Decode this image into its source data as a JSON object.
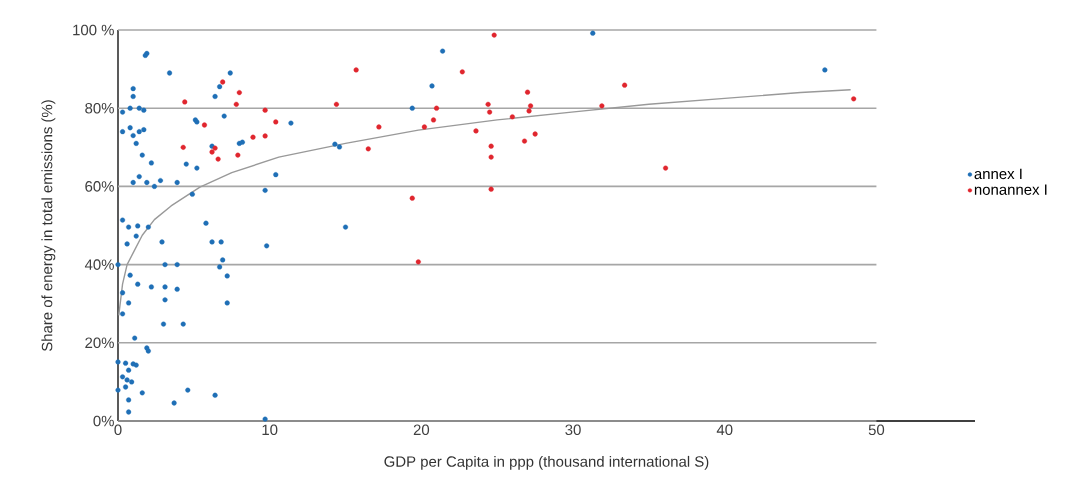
{
  "chart_data": {
    "type": "scatter",
    "xlabel": "GDP per Capita in ppp (thousand international S)",
    "ylabel": "Share of energy in total emissions (%)",
    "xlim": [
      0,
      56.5
    ],
    "ylim": [
      0,
      100
    ],
    "xticks": [
      0,
      10,
      20,
      30,
      40,
      50
    ],
    "yticks": [
      {
        "value": 0,
        "label": "0%"
      },
      {
        "value": 20,
        "label": "20%"
      },
      {
        "value": 40,
        "label": "40%"
      },
      {
        "value": 60,
        "label": "60%"
      },
      {
        "value": 80,
        "label": "80%"
      },
      {
        "value": 100,
        "label": "100 %"
      }
    ],
    "grid": "y",
    "legend": "right",
    "series": [
      {
        "name": "annex I",
        "color": "#1f6fb6",
        "marker": "circle",
        "x": [
          1.9,
          1.8,
          3.4,
          1,
          1,
          0.3,
          0.8,
          1.4,
          1.7,
          0.3,
          0.8,
          1,
          1.4,
          1.7,
          1.2,
          1.6,
          2.2,
          1.9,
          1.4,
          1,
          2.4,
          2.8,
          3.9,
          4.5,
          5.2,
          5.1,
          5.2,
          6.2,
          7,
          7.4,
          6.7,
          6.4,
          8,
          8.2,
          9.7,
          10.4,
          4.9,
          5.8,
          0.3,
          0.7,
          1.3,
          2,
          0.6,
          1.2,
          2.9,
          6.2,
          6.8,
          9.8,
          0,
          3.1,
          3.9,
          6.9,
          6.7,
          7.2,
          0.8,
          1.3,
          2.2,
          3.1,
          3.9,
          0.3,
          3.1,
          0.7,
          7.2,
          0.3,
          3,
          4.3,
          1.1,
          1.9,
          2,
          0,
          0.5,
          1,
          0.7,
          1.2,
          0.3,
          0.6,
          0.9,
          0,
          0.5,
          1.6,
          4.6,
          6.4,
          0.7,
          3.7,
          0.7,
          9.7,
          21.4,
          20.7,
          19.4,
          11.4,
          14.3,
          14.6,
          15,
          31.3,
          46.6
        ],
        "values": [
          94,
          93.5,
          89,
          85,
          83,
          79,
          80,
          80,
          79.5,
          74,
          75,
          73,
          74,
          74.5,
          71,
          68,
          66,
          61,
          62.5,
          61,
          60,
          61.5,
          61,
          65.7,
          64.7,
          77,
          76.5,
          70.3,
          78,
          89,
          85.5,
          83,
          71,
          71.3,
          59,
          63,
          58,
          50.6,
          51.4,
          49.6,
          49.9,
          49.6,
          45.3,
          47.3,
          45.8,
          45.8,
          45.8,
          44.8,
          40,
          40,
          40,
          41.2,
          39.4,
          37.1,
          37.3,
          35,
          34.3,
          34.3,
          33.7,
          32.8,
          31,
          30.2,
          30.2,
          27.4,
          24.8,
          24.8,
          21.2,
          18.7,
          17.9,
          15.1,
          14.8,
          14.6,
          13,
          14.3,
          11.3,
          10.5,
          10,
          7.9,
          8.7,
          7.2,
          7.9,
          6.6,
          5.4,
          4.6,
          2.3,
          0.5,
          94.6,
          85.7,
          80,
          76.2,
          70.8,
          70.1,
          49.6,
          99.2,
          89.8
        ]
      },
      {
        "name": "nonannex I",
        "color": "#e0262e",
        "marker": "circle",
        "x": [
          4.4,
          6.9,
          8,
          7.8,
          9.7,
          10.4,
          5.7,
          4.3,
          6.4,
          6.2,
          6.6,
          7.9,
          8.9,
          9.7,
          24.8,
          15.7,
          22.7,
          27,
          14.4,
          24.4,
          21,
          24.5,
          27.2,
          27.1,
          26,
          20.8,
          20.2,
          17.2,
          23.6,
          27.5,
          26.8,
          24.6,
          24.6,
          16.5,
          24.6,
          19.4,
          19.8,
          33.4,
          31.9,
          36.1,
          48.5
        ],
        "values": [
          81.6,
          86.7,
          84,
          81,
          79.5,
          76.5,
          75.7,
          70,
          69.8,
          68.8,
          67,
          68,
          72.6,
          72.9,
          98.7,
          89.8,
          89.3,
          84.1,
          81,
          81,
          80,
          79,
          80.6,
          79.3,
          77.8,
          77,
          75.2,
          75.2,
          74.2,
          73.4,
          71.6,
          70.3,
          67.5,
          69.6,
          59.3,
          57,
          40.7,
          85.9,
          80.6,
          64.7,
          82.4
        ]
      },
      {
        "type": "line",
        "color": "#999999",
        "x": [
          0.05,
          0.3,
          0.6,
          1,
          1.6,
          2.4,
          3.5,
          5.4,
          7.5,
          10.6,
          15,
          19.8,
          25,
          29.9,
          35,
          40,
          45,
          48.3
        ],
        "values": [
          27,
          35,
          40,
          43,
          47.5,
          51.5,
          55,
          59.8,
          63.5,
          67.5,
          71,
          74.4,
          77,
          79,
          81,
          82.5,
          84,
          84.7
        ]
      }
    ]
  }
}
